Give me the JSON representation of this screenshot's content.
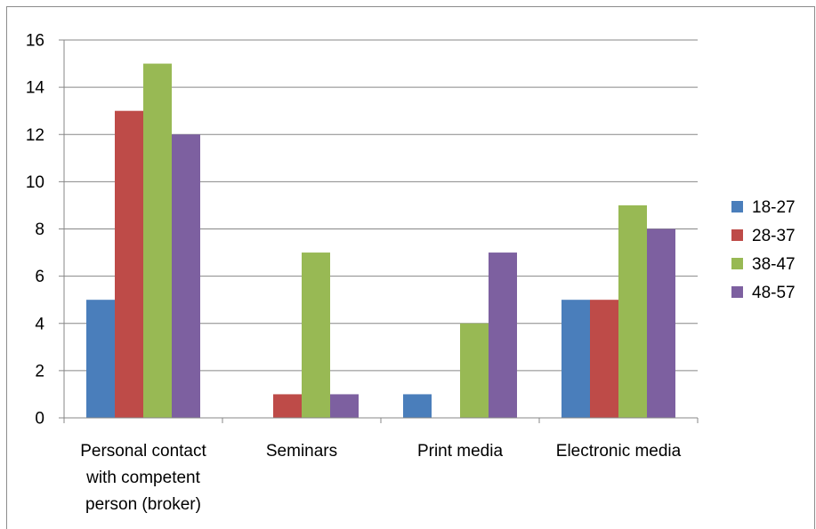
{
  "chart_data": {
    "type": "bar",
    "title": "",
    "xlabel": "",
    "ylabel": "",
    "categories": [
      [
        "Personal contact",
        "with competent",
        "person (broker)"
      ],
      [
        "Seminars"
      ],
      [
        "Print media"
      ],
      [
        "Electronic media"
      ]
    ],
    "series": [
      {
        "name": "18-27",
        "color": "#4a7ebb",
        "values": [
          5,
          0,
          1,
          5
        ]
      },
      {
        "name": "28-37",
        "color": "#be4b48",
        "values": [
          13,
          1,
          0,
          5
        ]
      },
      {
        "name": "38-47",
        "color": "#98b954",
        "values": [
          15,
          7,
          4,
          9
        ]
      },
      {
        "name": "48-57",
        "color": "#7d60a0",
        "values": [
          12,
          1,
          7,
          8
        ]
      }
    ],
    "ylim": [
      0,
      16
    ],
    "yticks": [
      0,
      2,
      4,
      6,
      8,
      10,
      12,
      14,
      16
    ],
    "grid": true,
    "legend": "right"
  }
}
